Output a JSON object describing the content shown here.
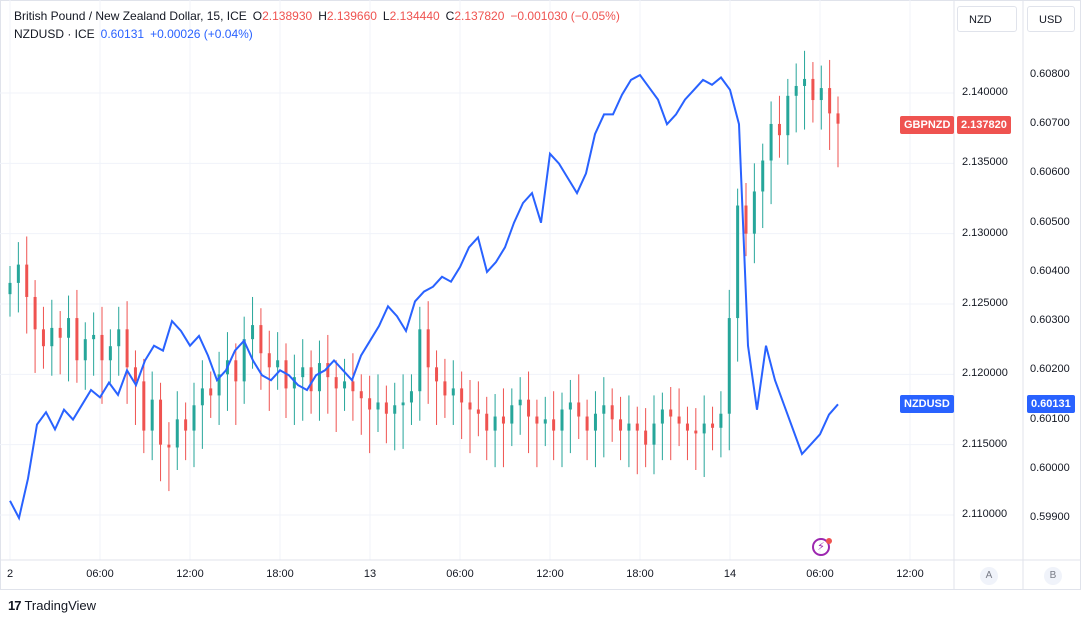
{
  "legend": {
    "main_title": "British Pound / New Zealand Dollar, 15, ICE",
    "open_key": "O",
    "open_val": "2.138930",
    "high_key": "H",
    "high_val": "2.139660",
    "low_key": "L",
    "low_val": "2.134440",
    "close_key": "C",
    "close_val": "2.137820",
    "change": "−0.001030 (−0.05%)",
    "second_title": "NZDUSD · ICE",
    "second_value": "0.60131",
    "second_change": "+0.00026 (+0.04%)"
  },
  "scales": {
    "left_label": "NZD",
    "right_label": "USD"
  },
  "tags": {
    "gbpnzd_name": "GBPNZD",
    "gbpnzd_value": "2.137820",
    "nzdusd_name": "NZDUSD",
    "nzdusd_value": "0.60131"
  },
  "brand": {
    "logo": "17",
    "name": "TradingView"
  },
  "buttons": {
    "auto": "A",
    "log": "B"
  },
  "colors": {
    "up": "#26a69a",
    "down": "#ef5350",
    "line": "#2962ff",
    "grid": "#f0f3fa"
  },
  "chart_data": [
    {
      "type": "candlestick",
      "title": "British Pound / New Zealand Dollar, 15, ICE",
      "series_name": "GBPNZD",
      "axis": "NZD",
      "ylim": [
        2.1065,
        2.146
      ],
      "y_ticks": [
        "2.110000",
        "2.115000",
        "2.120000",
        "2.125000",
        "2.130000",
        "2.135000",
        "2.140000"
      ],
      "last_close": 2.13782,
      "x_range": [
        0,
        100
      ],
      "closes": [
        2.1265,
        2.1278,
        2.1255,
        2.1232,
        2.122,
        2.1233,
        2.1226,
        2.124,
        2.121,
        2.1225,
        2.1228,
        2.121,
        2.122,
        2.1232,
        2.1205,
        2.1195,
        2.116,
        2.1182,
        2.115,
        2.1148,
        2.1168,
        2.116,
        2.1178,
        2.119,
        2.1185,
        2.12,
        2.121,
        2.1195,
        2.1225,
        2.1235,
        2.1215,
        2.1205,
        2.121,
        2.119,
        2.1198,
        2.1205,
        2.1188,
        2.1208,
        2.1198,
        2.119,
        2.1195,
        2.1188,
        2.1183,
        2.1175,
        2.118,
        2.1172,
        2.1178,
        2.118,
        2.1188,
        2.1232,
        2.1205,
        2.1195,
        2.1185,
        2.119,
        2.118,
        2.1175,
        2.1172,
        2.116,
        2.117,
        2.1165,
        2.1178,
        2.1182,
        2.117,
        2.1165,
        2.1168,
        2.116,
        2.1175,
        2.118,
        2.117,
        2.116,
        2.1172,
        2.1178,
        2.1168,
        2.116,
        2.1165,
        2.116,
        2.115,
        2.1165,
        2.1175,
        2.117,
        2.1165,
        2.116,
        2.1158,
        2.1165,
        2.1162,
        2.1172,
        2.124,
        2.132,
        2.13,
        2.133,
        2.1352,
        2.1378,
        2.137,
        2.1398,
        2.1405,
        2.141,
        2.1395,
        2.14035,
        2.13855,
        2.13782
      ]
    },
    {
      "type": "line",
      "series_name": "NZDUSD",
      "axis": "USD",
      "ylim": [
        0.598,
        0.6098
      ],
      "y_ticks": [
        "0.59900",
        "0.60000",
        "0.60100",
        "0.60200",
        "0.60300",
        "0.60400",
        "0.60500",
        "0.60600",
        "0.60700",
        "0.60800"
      ],
      "last_value": 0.60131,
      "x": [
        0,
        1,
        2,
        3,
        4,
        5,
        6,
        7,
        8,
        9,
        10,
        11,
        12,
        13,
        14,
        15,
        16,
        17,
        18,
        19,
        20,
        21,
        22,
        23,
        24,
        25,
        26,
        27,
        28,
        29,
        30,
        31,
        32,
        33,
        34,
        35,
        36,
        37,
        38,
        39,
        40,
        41,
        42,
        43,
        44,
        45,
        46,
        47,
        48,
        49,
        50,
        51,
        52,
        53,
        54,
        55,
        56,
        57,
        58,
        59,
        60,
        61,
        62,
        63,
        64,
        65,
        66,
        67,
        68,
        69,
        70,
        71,
        72,
        73,
        74,
        75,
        76,
        77,
        78,
        79,
        80,
        81,
        82,
        83,
        84,
        85,
        86,
        87,
        88,
        89,
        90,
        91,
        92
      ],
      "values": [
        0.59935,
        0.599,
        0.5998,
        0.6009,
        0.60115,
        0.6008,
        0.6012,
        0.601,
        0.6013,
        0.6016,
        0.60145,
        0.60175,
        0.6015,
        0.602,
        0.6017,
        0.6022,
        0.6025,
        0.6024,
        0.603,
        0.6028,
        0.6025,
        0.6027,
        0.6023,
        0.6018,
        0.602,
        0.6024,
        0.6026,
        0.6022,
        0.6019,
        0.6018,
        0.602,
        0.6019,
        0.6017,
        0.6016,
        0.6019,
        0.602,
        0.6022,
        0.602,
        0.6018,
        0.6023,
        0.6026,
        0.6029,
        0.6033,
        0.6031,
        0.6028,
        0.6034,
        0.6036,
        0.6037,
        0.6039,
        0.6038,
        0.6041,
        0.6045,
        0.6047,
        0.604,
        0.6042,
        0.6045,
        0.605,
        0.6054,
        0.6056,
        0.605,
        0.6064,
        0.6062,
        0.6059,
        0.6056,
        0.606,
        0.6068,
        0.6072,
        0.6072,
        0.6076,
        0.6079,
        0.608,
        0.60775,
        0.6075,
        0.607,
        0.6072,
        0.6075,
        0.6077,
        0.6079,
        0.6078,
        0.60795,
        0.6077,
        0.607,
        0.6025,
        0.6012,
        0.6025,
        0.6018,
        0.6013,
        0.6008,
        0.6003,
        0.6005,
        0.6007,
        0.6011,
        0.60131
      ]
    }
  ],
  "x_axis": {
    "x_range": [
      0,
      100
    ],
    "ticks": [
      {
        "label": "2",
        "pos": 0
      },
      {
        "label": "06:00",
        "pos": 10
      },
      {
        "label": "12:00",
        "pos": 20
      },
      {
        "label": "18:00",
        "pos": 30
      },
      {
        "label": "13",
        "pos": 40
      },
      {
        "label": "06:00",
        "pos": 50
      },
      {
        "label": "12:00",
        "pos": 60
      },
      {
        "label": "18:00",
        "pos": 70
      },
      {
        "label": "14",
        "pos": 80
      },
      {
        "label": "06:00",
        "pos": 90
      },
      {
        "label": "12:00",
        "pos": 100
      }
    ]
  }
}
